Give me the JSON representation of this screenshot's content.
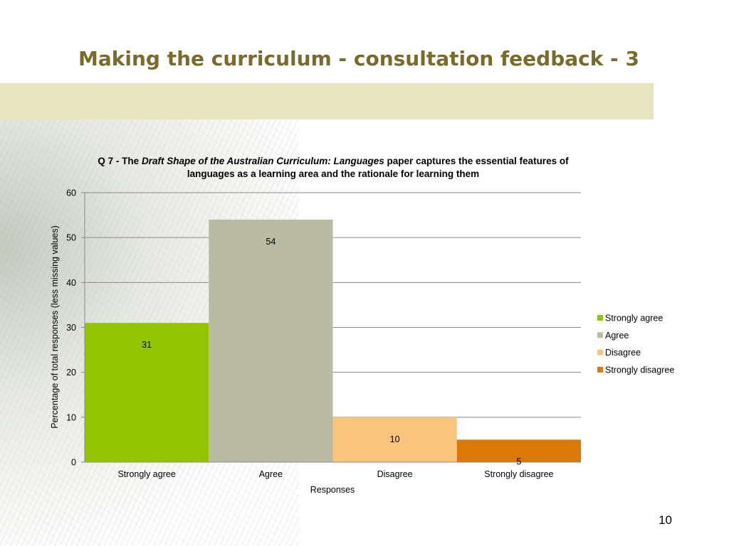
{
  "slide": {
    "title": "Making the curriculum - consultation feedback - 3",
    "page_number": "10"
  },
  "colors": {
    "title": "#7a6b2c",
    "band": "#e6e5bd"
  },
  "chart_data": {
    "type": "bar",
    "title_parts": {
      "prefix": "Q 7 - The ",
      "italic": "Draft Shape of the Australian Curriculum: Languages",
      "suffix": "  paper captures the essential features of languages as a learning area and the rationale for learning them"
    },
    "xlabel": "Responses",
    "ylabel": "Percentage of total responses (less missing values)",
    "ylim": [
      0,
      60
    ],
    "yticks": [
      0,
      10,
      20,
      30,
      40,
      50,
      60
    ],
    "grid": true,
    "legend_position": "right",
    "categories": [
      "Strongly agree",
      "Agree",
      "Disagree",
      "Strongly disagree"
    ],
    "values": [
      31,
      54,
      10,
      5
    ],
    "colors": [
      "#92c500",
      "#b9bba2",
      "#fbc47d",
      "#d87a05"
    ]
  }
}
